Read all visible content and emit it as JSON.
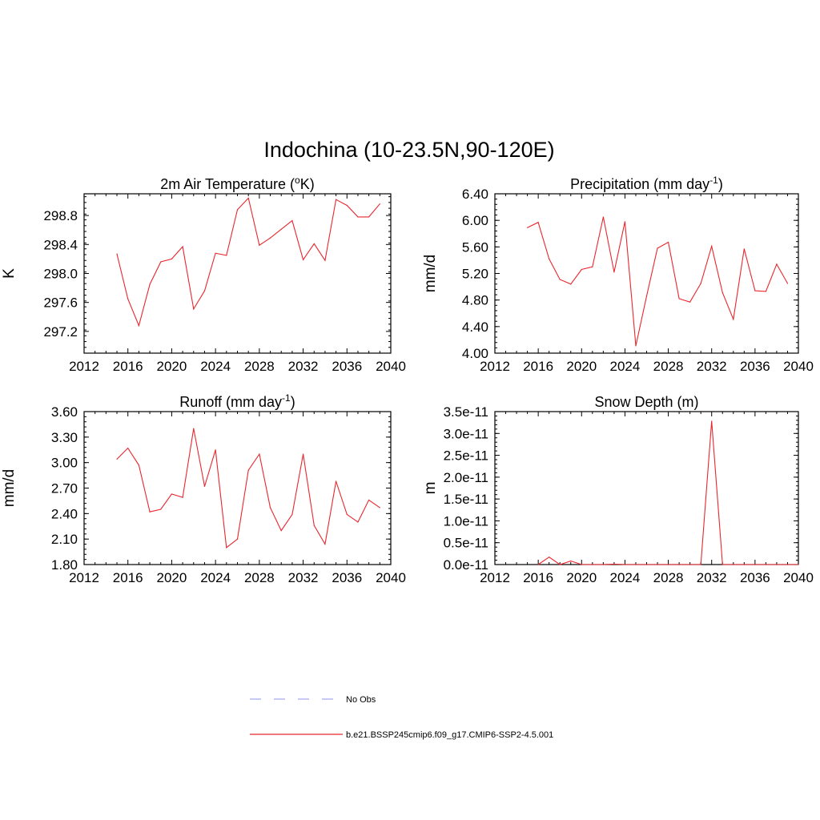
{
  "title": "Indochina (10-23.5N,90-120E)",
  "colors": {
    "model": "#e8272d",
    "obs": "#a9a9f2",
    "axis": "#000000"
  },
  "legend": {
    "obs_label": "No Obs",
    "model_label": "b.e21.BSSP245cmip6.f09_g17.CMIP6-SSP2-4.5.001"
  },
  "chart_data": [
    {
      "type": "line",
      "title": {
        "text": "2m Air Temperature (",
        "sup": "o",
        "after": "K)"
      },
      "ylabel": "K",
      "xlim": [
        2012,
        2040
      ],
      "ylim": [
        296.9,
        299.1
      ],
      "xticks": [
        "2012",
        "2016",
        "2020",
        "2024",
        "2028",
        "2032",
        "2036",
        "2040"
      ],
      "yticks": [
        "297.2",
        "297.6",
        "298.0",
        "298.4",
        "298.8"
      ],
      "series": [
        {
          "x": [
            2015,
            2016,
            2017,
            2018,
            2019,
            2020,
            2021,
            2022,
            2023,
            2024,
            2025,
            2026,
            2027,
            2028,
            2029,
            2030,
            2031,
            2032,
            2033,
            2034,
            2035,
            2036,
            2037,
            2038,
            2039
          ],
          "values": [
            298.27,
            297.65,
            297.28,
            297.85,
            298.16,
            298.2,
            298.37,
            297.51,
            297.76,
            298.28,
            298.25,
            298.88,
            299.04,
            298.39,
            298.49,
            298.61,
            298.73,
            298.19,
            298.41,
            298.18,
            299.02,
            298.94,
            298.78,
            298.78,
            298.96
          ]
        }
      ]
    },
    {
      "type": "line",
      "title": {
        "text": "Precipitation (mm day",
        "sup": "-1",
        "after": ")"
      },
      "ylabel": "mm/d",
      "xlim": [
        2012,
        2040
      ],
      "ylim": [
        4.0,
        6.4
      ],
      "xticks": [
        "2012",
        "2016",
        "2020",
        "2024",
        "2028",
        "2032",
        "2036",
        "2040"
      ],
      "yticks": [
        "4.00",
        "4.40",
        "4.80",
        "5.20",
        "5.60",
        "6.00",
        "6.40"
      ],
      "series": [
        {
          "x": [
            2015,
            2016,
            2017,
            2018,
            2019,
            2020,
            2021,
            2022,
            2023,
            2024,
            2025,
            2026,
            2027,
            2028,
            2029,
            2030,
            2031,
            2032,
            2033,
            2034,
            2035,
            2036,
            2037,
            2038,
            2039
          ],
          "values": [
            5.89,
            5.97,
            5.42,
            5.11,
            5.04,
            5.26,
            5.3,
            6.05,
            5.22,
            5.98,
            4.11,
            4.86,
            5.58,
            5.67,
            4.82,
            4.77,
            5.05,
            5.61,
            4.91,
            4.51,
            5.57,
            4.94,
            4.93,
            5.34,
            5.05
          ]
        }
      ]
    },
    {
      "type": "line",
      "title": {
        "text": "Runoff (mm day",
        "sup": "-1",
        "after": ")"
      },
      "ylabel": "mm/d",
      "xlim": [
        2012,
        2040
      ],
      "ylim": [
        1.8,
        3.6
      ],
      "xticks": [
        "2012",
        "2016",
        "2020",
        "2024",
        "2028",
        "2032",
        "2036",
        "2040"
      ],
      "yticks": [
        "1.80",
        "2.10",
        "2.40",
        "2.70",
        "3.00",
        "3.30",
        "3.60"
      ],
      "series": [
        {
          "x": [
            2015,
            2016,
            2017,
            2018,
            2019,
            2020,
            2021,
            2022,
            2023,
            2024,
            2025,
            2026,
            2027,
            2028,
            2029,
            2030,
            2031,
            2032,
            2033,
            2034,
            2035,
            2036,
            2037,
            2038,
            2039
          ],
          "values": [
            3.04,
            3.17,
            2.97,
            2.42,
            2.45,
            2.63,
            2.59,
            3.4,
            2.72,
            3.15,
            2.0,
            2.1,
            2.91,
            3.1,
            2.47,
            2.2,
            2.39,
            3.1,
            2.26,
            2.04,
            2.78,
            2.39,
            2.3,
            2.56,
            2.47
          ]
        }
      ]
    },
    {
      "type": "line",
      "title": {
        "text": "Snow Depth (m)",
        "sup": "",
        "after": ""
      },
      "ylabel": "m",
      "xlim": [
        2012,
        2040
      ],
      "ylim": [
        0,
        3.5e-11
      ],
      "xticks": [
        "2012",
        "2016",
        "2020",
        "2024",
        "2028",
        "2032",
        "2036",
        "2040"
      ],
      "yticks": [
        "0.0e-11",
        "0.5e-11",
        "1.0e-11",
        "1.5e-11",
        "2.0e-11",
        "2.5e-11",
        "3.0e-11",
        "3.5e-11"
      ],
      "series": [
        {
          "x": [
            2016,
            2017,
            2018,
            2019,
            2020,
            2021,
            2022,
            2023,
            2024,
            2025,
            2026,
            2027,
            2028,
            2029,
            2030,
            2031,
            2032,
            2033,
            2034,
            2035,
            2036,
            2037,
            2038,
            2039,
            2040
          ],
          "values": [
            0,
            1.7e-12,
            0,
            8e-13,
            0,
            0,
            0,
            1e-13,
            0,
            0,
            0,
            0,
            0,
            0,
            0,
            0,
            3.28e-11,
            0,
            0,
            0,
            0,
            0,
            0,
            0,
            0
          ]
        }
      ]
    }
  ]
}
